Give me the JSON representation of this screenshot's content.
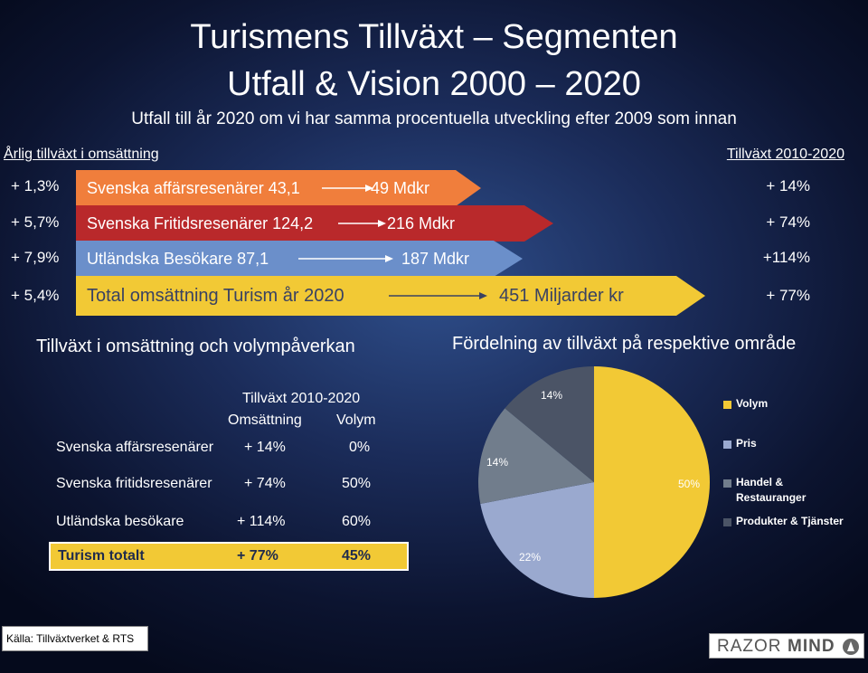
{
  "header": {
    "title_line1": "Turismens Tillväxt – Segmenten",
    "title_line2": "Utfall & Vision 2000 – 2020",
    "subtitle": "Utfall till år 2020 om vi har samma procentuella utveckling efter 2009 som innan"
  },
  "top": {
    "left_heading": "Årlig tillväxt i omsättning",
    "right_heading": "Tillväxt 2010-2020",
    "rows": [
      {
        "annual": "+ 1,3%",
        "label": "Svenska affärsresenärer 43,1",
        "value": "49 Mdkr",
        "growth": "+ 14%",
        "color": "#f07e3c"
      },
      {
        "annual": "+ 5,7%",
        "label": "Svenska Fritidsresenärer 124,2",
        "value": "216 Mdkr",
        "growth": "+ 74%",
        "color": "#b9292b"
      },
      {
        "annual": "+ 7,9%",
        "label": "Utländska Besökare 87,1",
        "value": "187 Mdkr",
        "growth": "+114%",
        "color": "#6b8fca"
      },
      {
        "annual": "+ 5,4%",
        "label": "Total omsättning Turism år 2020",
        "value": "451 Miljarder kr",
        "growth": "+ 77%",
        "color": "#f2c935"
      }
    ]
  },
  "table": {
    "heading": "Tillväxt i omsättning och volympåverkan",
    "col_group": "Tillväxt 2010-2020",
    "col1": "Omsättning",
    "col2": "Volym",
    "rows": [
      {
        "name": "Svenska affärsresenärer",
        "oms": "+ 14%",
        "vol": "0%"
      },
      {
        "name": "Svenska fritidsresenärer",
        "oms": "+ 74%",
        "vol": "50%"
      },
      {
        "name": "Utländska besökare",
        "oms": "+ 114%",
        "vol": "60%"
      }
    ],
    "total": {
      "name": "Turism totalt",
      "oms": "+ 77%",
      "vol": "45%"
    }
  },
  "chart_data": {
    "type": "pie",
    "title": "Fördelning av tillväxt på respektive område",
    "labels": [
      "Volym",
      "Pris",
      "Handel & Restauranger",
      "Produkter & Tjänster"
    ],
    "values": [
      50,
      22,
      14,
      14
    ],
    "value_labels": [
      "50%",
      "22%",
      "14%",
      "14%"
    ],
    "colors": [
      "#f2c935",
      "#9aa9cf",
      "#717d8c",
      "#4b5466"
    ],
    "legend_position": "right"
  },
  "footer": {
    "source": "Källa: Tillväxtverket & RTS",
    "logo_part1": "RAZOR",
    "logo_part2": "MIND"
  }
}
